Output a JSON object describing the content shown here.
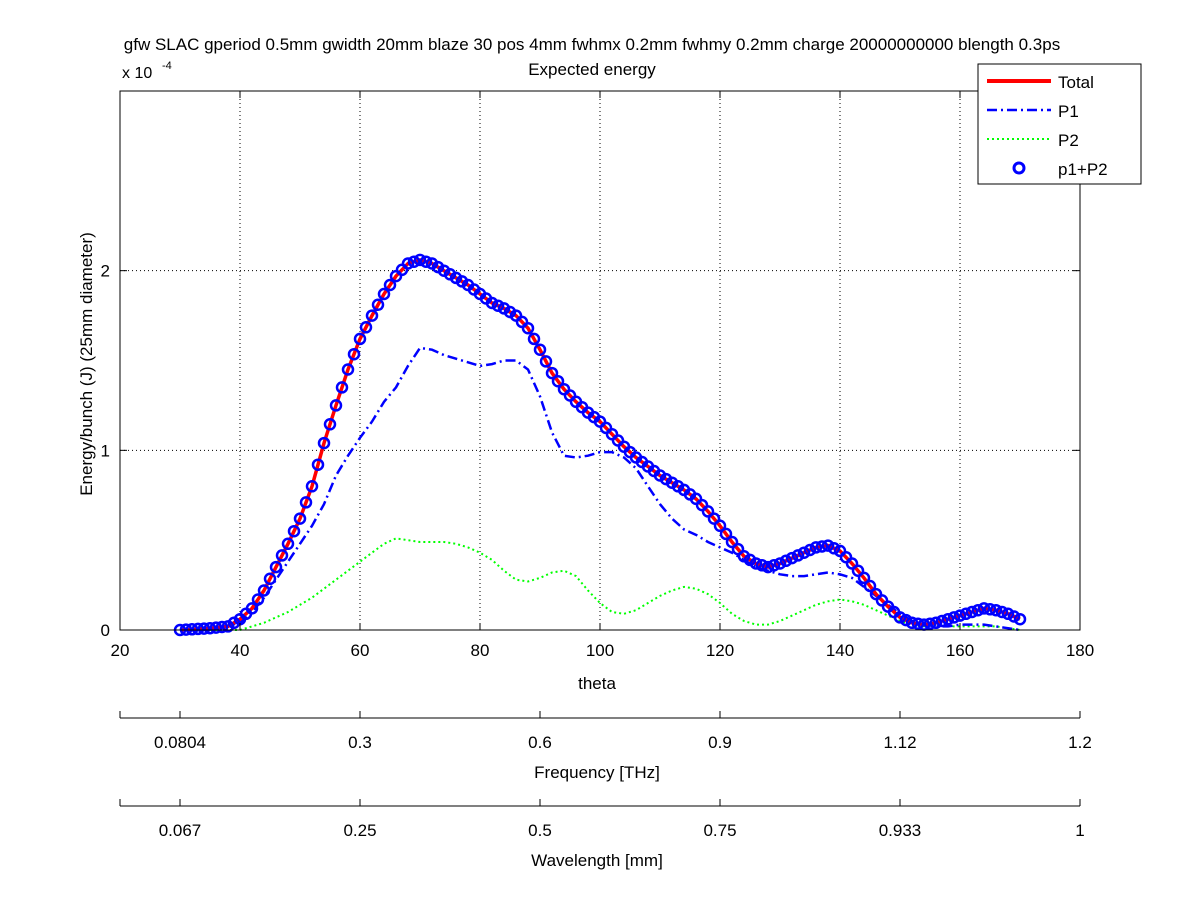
{
  "chart_data": {
    "type": "line",
    "title": "gfw SLAC gperiod 0.5mm gwidth 20mm blaze 30 pos 4mm fwhmx 0.2mm fwhmy 0.2mm charge 20000000000 blength 0.3ps",
    "subtitle": "Expected energy",
    "xlabel": "theta",
    "ylabel": "Energy/bunch (J) (25mm diameter)",
    "y_scale_base": "x 10",
    "y_scale_exp": "-4",
    "xlim": [
      20,
      180
    ],
    "ylim": [
      0,
      3.0
    ],
    "x_ticks": [
      20,
      40,
      60,
      80,
      100,
      120,
      140,
      160,
      180
    ],
    "y_ticks": [
      0,
      1,
      2
    ],
    "grid": true,
    "legend_position": "top-right",
    "legend": [
      "Total",
      "P1",
      "P2",
      "p1+P2"
    ],
    "series": [
      {
        "name": "Total",
        "color": "#ff0000",
        "style": "solid",
        "x": [
          30,
          35,
          38,
          40,
          42,
          44,
          46,
          48,
          50,
          52,
          54,
          56,
          58,
          60,
          62,
          64,
          66,
          68,
          70,
          72,
          74,
          76,
          78,
          80,
          82,
          84,
          86,
          88,
          90,
          92,
          94,
          96,
          98,
          100,
          102,
          104,
          106,
          108,
          110,
          112,
          114,
          116,
          118,
          120,
          122,
          124,
          126,
          128,
          130,
          132,
          134,
          136,
          138,
          140,
          142,
          144,
          146,
          148,
          150,
          152,
          154,
          156,
          158,
          160,
          162,
          164,
          166,
          168,
          170
        ],
        "y": [
          0.0,
          0.01,
          0.02,
          0.06,
          0.12,
          0.22,
          0.35,
          0.48,
          0.62,
          0.8,
          1.04,
          1.25,
          1.45,
          1.62,
          1.75,
          1.87,
          1.97,
          2.04,
          2.06,
          2.04,
          2.0,
          1.96,
          1.92,
          1.87,
          1.82,
          1.79,
          1.75,
          1.68,
          1.56,
          1.43,
          1.34,
          1.27,
          1.21,
          1.16,
          1.09,
          1.02,
          0.96,
          0.91,
          0.86,
          0.82,
          0.78,
          0.73,
          0.66,
          0.58,
          0.49,
          0.41,
          0.37,
          0.35,
          0.37,
          0.4,
          0.43,
          0.46,
          0.47,
          0.44,
          0.37,
          0.29,
          0.2,
          0.13,
          0.07,
          0.04,
          0.03,
          0.04,
          0.06,
          0.08,
          0.1,
          0.12,
          0.11,
          0.09,
          0.06
        ]
      },
      {
        "name": "P1",
        "color": "#0000ff",
        "style": "dashdot",
        "x": [
          30,
          35,
          40,
          42,
          44,
          46,
          48,
          50,
          52,
          54,
          56,
          58,
          60,
          62,
          64,
          66,
          68,
          70,
          72,
          74,
          76,
          78,
          80,
          82,
          84,
          86,
          88,
          90,
          92,
          94,
          96,
          98,
          100,
          102,
          104,
          106,
          108,
          110,
          112,
          114,
          116,
          118,
          120,
          122,
          124,
          126,
          128,
          130,
          132,
          134,
          136,
          138,
          140,
          142,
          144,
          146,
          148,
          150,
          152,
          154,
          156,
          158,
          160,
          162,
          164,
          166,
          168,
          170
        ],
        "y": [
          0.0,
          0.0,
          0.04,
          0.1,
          0.18,
          0.28,
          0.38,
          0.48,
          0.58,
          0.7,
          0.86,
          0.97,
          1.07,
          1.16,
          1.27,
          1.35,
          1.47,
          1.57,
          1.56,
          1.53,
          1.51,
          1.49,
          1.47,
          1.48,
          1.5,
          1.5,
          1.45,
          1.3,
          1.1,
          0.97,
          0.96,
          0.97,
          0.99,
          0.99,
          0.96,
          0.9,
          0.8,
          0.7,
          0.62,
          0.56,
          0.53,
          0.49,
          0.46,
          0.43,
          0.39,
          0.35,
          0.33,
          0.31,
          0.3,
          0.3,
          0.31,
          0.32,
          0.31,
          0.29,
          0.24,
          0.19,
          0.14,
          0.09,
          0.05,
          0.03,
          0.02,
          0.02,
          0.03,
          0.03,
          0.03,
          0.02,
          0.01,
          0.0
        ]
      },
      {
        "name": "P2",
        "color": "#00ff00",
        "style": "dotted",
        "x": [
          30,
          35,
          40,
          44,
          48,
          52,
          56,
          60,
          62,
          64,
          66,
          68,
          70,
          72,
          74,
          76,
          78,
          80,
          82,
          84,
          86,
          88,
          90,
          92,
          94,
          96,
          98,
          100,
          102,
          104,
          106,
          108,
          110,
          112,
          114,
          116,
          118,
          120,
          122,
          124,
          126,
          128,
          130,
          132,
          134,
          136,
          138,
          140,
          142,
          144,
          146,
          148,
          150,
          152,
          154,
          156,
          158,
          160,
          162,
          164,
          166,
          168,
          170
        ],
        "y": [
          0.0,
          0.0,
          0.0,
          0.04,
          0.1,
          0.18,
          0.28,
          0.38,
          0.43,
          0.48,
          0.51,
          0.5,
          0.49,
          0.49,
          0.49,
          0.48,
          0.46,
          0.43,
          0.39,
          0.33,
          0.28,
          0.27,
          0.29,
          0.32,
          0.33,
          0.3,
          0.22,
          0.15,
          0.1,
          0.09,
          0.11,
          0.15,
          0.19,
          0.22,
          0.24,
          0.23,
          0.2,
          0.15,
          0.09,
          0.05,
          0.03,
          0.03,
          0.05,
          0.08,
          0.11,
          0.14,
          0.16,
          0.17,
          0.16,
          0.14,
          0.11,
          0.08,
          0.05,
          0.03,
          0.02,
          0.02,
          0.02,
          0.02,
          0.02,
          0.02,
          0.02,
          0.01,
          0.0
        ]
      },
      {
        "name": "p1+P2",
        "color": "#0000ff",
        "style": "markers-circle",
        "x_from": 30,
        "x_to": 170,
        "x_step": 1,
        "follows": "Total"
      }
    ],
    "secondary_axes": [
      {
        "label": "Frequency [THz]",
        "ticks": [
          {
            "theta": 30,
            "label": "0.0804"
          },
          {
            "theta": 60,
            "label": "0.3"
          },
          {
            "theta": 90,
            "label": "0.6"
          },
          {
            "theta": 120,
            "label": "0.9"
          },
          {
            "theta": 150,
            "label": "1.12"
          },
          {
            "theta": 180,
            "label": "1.2"
          }
        ]
      },
      {
        "label": "Wavelength [mm]",
        "ticks": [
          {
            "theta": 30,
            "label": "0.067"
          },
          {
            "theta": 60,
            "label": "0.25"
          },
          {
            "theta": 90,
            "label": "0.5"
          },
          {
            "theta": 120,
            "label": "0.75"
          },
          {
            "theta": 150,
            "label": "0.933"
          },
          {
            "theta": 180,
            "label": "1"
          }
        ]
      }
    ]
  }
}
